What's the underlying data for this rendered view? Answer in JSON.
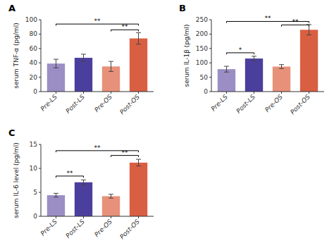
{
  "chart_data": [
    {
      "type": "bar",
      "title": "A",
      "ylabel": "serum TNF-α (pg/ml)",
      "categories": [
        "Pre-LS",
        "Post-LS",
        "Pre-OS",
        "Post-OS"
      ],
      "values": [
        39,
        47,
        35,
        74
      ],
      "errors": [
        6,
        5,
        7,
        8
      ],
      "colors": [
        "#9b8ec4",
        "#4b3f9e",
        "#e8917a",
        "#d95f43"
      ],
      "ylim": [
        0,
        100
      ],
      "yticks": [
        0,
        20,
        40,
        60,
        80,
        100
      ],
      "grid": false,
      "annotations": [
        {
          "x1": "Pre-LS",
          "x2": "Post-OS",
          "y": 94,
          "text": "**"
        },
        {
          "x1": "Pre-OS",
          "x2": "Post-OS",
          "y": 86,
          "text": "**"
        }
      ]
    },
    {
      "type": "bar",
      "title": "B",
      "ylabel": "serum IL-1β (pg/ml)",
      "categories": [
        "Pre-LS",
        "Post-LS",
        "Pre-OS",
        "Post-OS"
      ],
      "values": [
        78,
        115,
        87,
        215
      ],
      "errors": [
        10,
        8,
        7,
        18
      ],
      "colors": [
        "#9b8ec4",
        "#4b3f9e",
        "#e8917a",
        "#d95f43"
      ],
      "ylim": [
        0,
        250
      ],
      "yticks": [
        0,
        50,
        100,
        150,
        200,
        250
      ],
      "grid": false,
      "annotations": [
        {
          "x1": "Pre-LS",
          "x2": "Post-LS",
          "y": 135,
          "text": "*"
        },
        {
          "x1": "Pre-LS",
          "x2": "Post-OS",
          "y": 244,
          "text": "**"
        },
        {
          "x1": "Pre-OS",
          "x2": "Post-OS",
          "y": 232,
          "text": "**"
        }
      ]
    },
    {
      "type": "bar",
      "title": "C",
      "ylabel": "serum IL-6 level (pg/ml)",
      "categories": [
        "Pre-LS",
        "Post-LS",
        "Pre-OS",
        "Post-OS"
      ],
      "values": [
        4.4,
        7.1,
        4.2,
        11.2
      ],
      "errors": [
        0.4,
        0.5,
        0.4,
        0.7
      ],
      "colors": [
        "#9b8ec4",
        "#4b3f9e",
        "#e8917a",
        "#d95f43"
      ],
      "ylim": [
        0,
        15
      ],
      "yticks": [
        0,
        5,
        10,
        15
      ],
      "grid": false,
      "annotations": [
        {
          "x1": "Pre-LS",
          "x2": "Post-LS",
          "y": 8.4,
          "text": "**"
        },
        {
          "x1": "Pre-LS",
          "x2": "Post-OS",
          "y": 13.7,
          "text": "**"
        },
        {
          "x1": "Pre-OS",
          "x2": "Post-OS",
          "y": 12.7,
          "text": "**"
        }
      ]
    }
  ]
}
